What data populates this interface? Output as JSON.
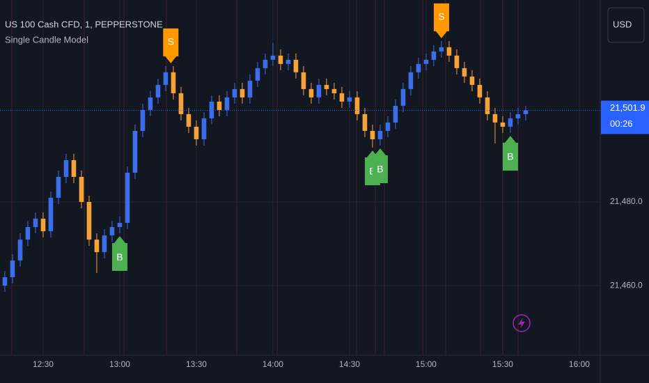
{
  "chart_data": {
    "type": "candlestick",
    "title": "US 100 Cash CFD, 1, PEPPERSTONE",
    "subtitle": "Single Candle Model",
    "currency": "USD",
    "price_tag": "21,501.9",
    "countdown": "00:26",
    "up_color": "#3b6ee8",
    "down_color": "#f5a23a",
    "grid": true,
    "xlim": [
      733.1,
      968.2
    ],
    "ylim": [
      21441.7,
      21528.3
    ],
    "xticks": [
      {
        "value": 750,
        "label": "12:30"
      },
      {
        "value": 780,
        "label": "13:00"
      },
      {
        "value": 810,
        "label": "13:30"
      },
      {
        "value": 840,
        "label": "14:00"
      },
      {
        "value": 870,
        "label": "14:30"
      },
      {
        "value": 900,
        "label": "15:00"
      },
      {
        "value": 930,
        "label": "15:30"
      },
      {
        "value": 960,
        "label": "16:00"
      }
    ],
    "yticks": [
      {
        "value": 21480,
        "label": "21,480.0"
      },
      {
        "value": 21460,
        "label": "21,460.0"
      }
    ],
    "x": [
      735,
      738,
      741,
      744,
      747,
      750,
      753,
      756,
      759,
      762,
      765,
      768,
      771,
      774,
      777,
      780,
      783,
      786,
      789,
      792,
      795,
      798,
      801,
      804,
      807,
      810,
      813,
      816,
      819,
      822,
      825,
      828,
      831,
      834,
      837,
      840,
      843,
      846,
      849,
      852,
      855,
      858,
      861,
      864,
      867,
      870,
      873,
      876,
      879,
      882,
      885,
      888,
      891,
      894,
      897,
      900,
      903,
      906,
      909,
      912,
      915,
      918,
      921,
      924,
      927,
      930,
      933,
      936,
      939
    ],
    "candles": [
      [
        21460,
        21463.5,
        21458.5,
        21462
      ],
      [
        21462,
        21467.5,
        21460.5,
        21466
      ],
      [
        21466,
        21472.5,
        21464.5,
        21471
      ],
      [
        21471,
        21475.5,
        21469.5,
        21474
      ],
      [
        21474,
        21477.5,
        21472.5,
        21476
      ],
      [
        21476,
        21477.5,
        21471.5,
        21473
      ],
      [
        21473,
        21482.5,
        21471.5,
        21481
      ],
      [
        21481,
        21487.5,
        21479.5,
        21486
      ],
      [
        21486,
        21491.5,
        21484.5,
        21490
      ],
      [
        21490,
        21491.5,
        21484.5,
        21486
      ],
      [
        21486,
        21487.5,
        21478.5,
        21480
      ],
      [
        21480,
        21481.5,
        21469.5,
        21471
      ],
      [
        21471,
        21472.5,
        21463,
        21468
      ],
      [
        21468,
        21473.5,
        21466.5,
        21472
      ],
      [
        21472,
        21475.5,
        21470.5,
        21474
      ],
      [
        21474,
        21476.5,
        21472.5,
        21475
      ],
      [
        21475,
        21488.5,
        21473.5,
        21487
      ],
      [
        21487,
        21498.5,
        21485.5,
        21497
      ],
      [
        21497,
        21503.5,
        21495.5,
        21502
      ],
      [
        21502,
        21506.5,
        21500.5,
        21505
      ],
      [
        21505,
        21509.5,
        21503.5,
        21508
      ],
      [
        21508,
        21512.5,
        21506.5,
        21511
      ],
      [
        21511,
        21512.5,
        21504.5,
        21506
      ],
      [
        21506,
        21507.5,
        21499.5,
        21501
      ],
      [
        21501,
        21502.5,
        21496.5,
        21498
      ],
      [
        21498,
        21499.5,
        21493.5,
        21495
      ],
      [
        21495,
        21501.5,
        21493.5,
        21500
      ],
      [
        21500,
        21505.5,
        21498.5,
        21504
      ],
      [
        21504,
        21505.5,
        21500.5,
        21502
      ],
      [
        21502,
        21506.5,
        21500.5,
        21505
      ],
      [
        21505,
        21508.5,
        21503.5,
        21507
      ],
      [
        21507,
        21508.5,
        21503.5,
        21505
      ],
      [
        21505,
        21510.5,
        21503.5,
        21509
      ],
      [
        21509,
        21513.5,
        21507.5,
        21512
      ],
      [
        21512,
        21515.5,
        21510.5,
        21514
      ],
      [
        21514,
        21518,
        21512.5,
        21515
      ],
      [
        21515,
        21516.5,
        21511.5,
        21513
      ],
      [
        21513,
        21515.5,
        21511.5,
        21514
      ],
      [
        21514,
        21515.5,
        21509.5,
        21511
      ],
      [
        21511,
        21512.5,
        21505.5,
        21507
      ],
      [
        21507,
        21508.5,
        21503.5,
        21505
      ],
      [
        21505,
        21509.5,
        21503.5,
        21508
      ],
      [
        21508,
        21509.5,
        21505.5,
        21507
      ],
      [
        21507,
        21508.5,
        21504.5,
        21506
      ],
      [
        21506,
        21507.5,
        21502.5,
        21504
      ],
      [
        21504,
        21506.5,
        21502.5,
        21505
      ],
      [
        21505,
        21506.5,
        21499.5,
        21501
      ],
      [
        21501,
        21502.5,
        21495.5,
        21497
      ],
      [
        21497,
        21498.5,
        21493,
        21495
      ],
      [
        21495,
        21498.5,
        21493.5,
        21497
      ],
      [
        21497,
        21500.5,
        21495.5,
        21499
      ],
      [
        21499,
        21504.5,
        21497.5,
        21503
      ],
      [
        21503,
        21508.5,
        21501.5,
        21507
      ],
      [
        21507,
        21512.5,
        21505.5,
        21511
      ],
      [
        21511,
        21514.5,
        21509.5,
        21513
      ],
      [
        21513,
        21515.5,
        21511.5,
        21514
      ],
      [
        21514,
        21517.5,
        21512.5,
        21516
      ],
      [
        21516,
        21518.5,
        21514.5,
        21517
      ],
      [
        21517,
        21518.5,
        21513.5,
        21515
      ],
      [
        21515,
        21516.5,
        21510.5,
        21512
      ],
      [
        21512,
        21513.5,
        21508.5,
        21510
      ],
      [
        21510,
        21511.5,
        21506.5,
        21508
      ],
      [
        21508,
        21509.5,
        21503.5,
        21505
      ],
      [
        21505,
        21506.5,
        21499.5,
        21501
      ],
      [
        21501,
        21502.5,
        21494,
        21499
      ],
      [
        21499,
        21500.5,
        21496.5,
        21498
      ],
      [
        21498,
        21501.5,
        21496.5,
        21500
      ],
      [
        21500,
        21502.5,
        21498.5,
        21501
      ],
      [
        21501,
        21503,
        21499.5,
        21501.9
      ]
    ],
    "signals": [
      {
        "x": 780,
        "label": "B"
      },
      {
        "x": 800,
        "label": "S"
      },
      {
        "x": 879,
        "label": "B"
      },
      {
        "x": 882,
        "label": "B"
      },
      {
        "x": 906,
        "label": "S"
      },
      {
        "x": 933,
        "label": "B"
      }
    ],
    "buy_color": "#4caf50",
    "sell_color": "#ff9800"
  }
}
